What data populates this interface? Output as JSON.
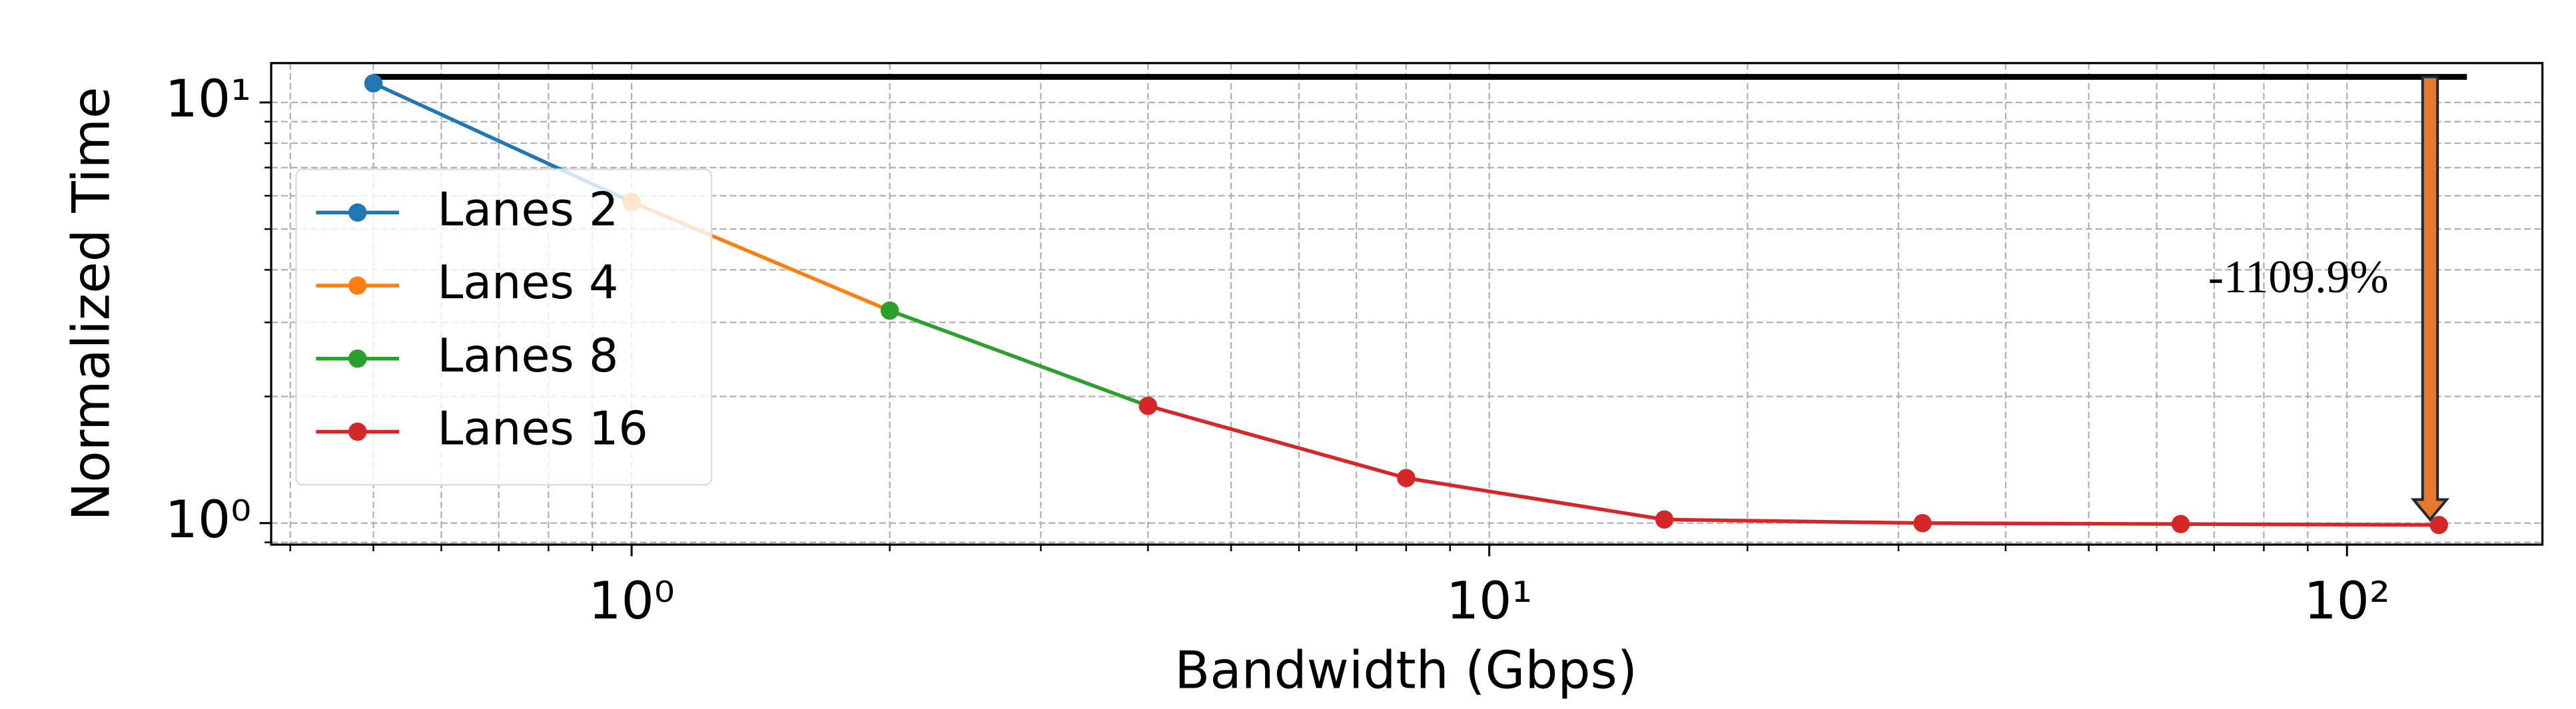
{
  "chart_data": {
    "type": "line",
    "x_label": "Bandwidth (Gbps)",
    "y_label": "Normalized Time",
    "x": [
      0.5,
      1,
      2,
      4,
      8,
      16,
      32,
      64,
      128
    ],
    "series": [
      {
        "name": "Lanes 2",
        "color": "#1f77b4",
        "values": [
          11.1,
          5.8,
          null,
          null,
          null,
          null,
          null,
          null,
          null
        ]
      },
      {
        "name": "Lanes 4",
        "color": "#ff7f0e",
        "values": [
          null,
          5.8,
          3.2,
          null,
          null,
          null,
          null,
          null,
          null
        ]
      },
      {
        "name": "Lanes 8",
        "color": "#2ca02c",
        "values": [
          null,
          null,
          3.2,
          1.9,
          null,
          null,
          null,
          null,
          null
        ]
      },
      {
        "name": "Lanes 16",
        "color": "#d62728",
        "values": [
          null,
          null,
          null,
          1.9,
          1.28,
          1.02,
          1.0,
          0.995,
          0.99
        ]
      }
    ],
    "xscale": "log",
    "yscale": "log",
    "xlim": [
      0.38,
      169
    ],
    "ylim": [
      0.889,
      12.4
    ],
    "xticks": [
      {
        "value": 1,
        "label": "10⁰"
      },
      {
        "value": 10,
        "label": "10¹"
      },
      {
        "value": 100,
        "label": "10²"
      }
    ],
    "yticks": [
      {
        "value": 1,
        "label": "10⁰"
      },
      {
        "value": 10,
        "label": "10¹"
      }
    ],
    "xminorticks": [
      0.4,
      0.5,
      0.6,
      0.7,
      0.8,
      0.9,
      2,
      3,
      4,
      5,
      6,
      7,
      8,
      9,
      20,
      30,
      40,
      50,
      60,
      70,
      80,
      90
    ],
    "yminorticks": [
      0.9,
      2,
      3,
      4,
      5,
      6,
      7,
      8,
      9
    ],
    "grid": true,
    "legend": "center left",
    "reference_line": {
      "x": [
        0.5,
        138
      ],
      "y": 11.5,
      "color": "#000000"
    },
    "annotation": {
      "text": "-1109.9%",
      "x": 125,
      "y_start": 11.5,
      "y_end": 1.02,
      "color": "#e8772e"
    }
  }
}
